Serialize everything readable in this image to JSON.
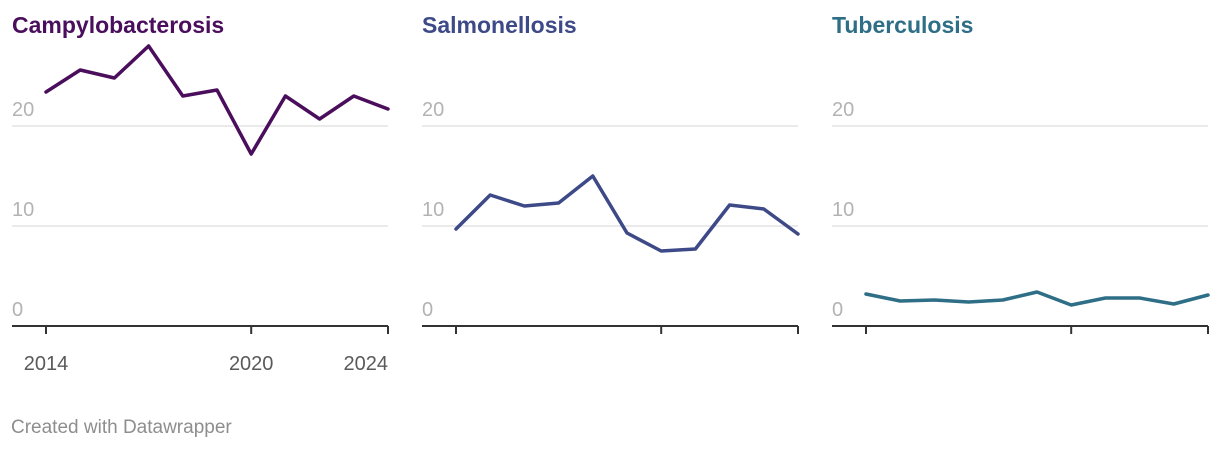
{
  "chart_data": [
    {
      "type": "line",
      "title": "Campylobacterosis",
      "color": "#4a0e5c",
      "x": [
        2014,
        2015,
        2016,
        2017,
        2018,
        2019,
        2020,
        2021,
        2022,
        2023,
        2024
      ],
      "values": [
        23.4,
        25.6,
        24.8,
        28.0,
        23.0,
        23.6,
        17.2,
        23.0,
        20.7,
        23.0,
        21.7
      ],
      "ylim": [
        0,
        20
      ],
      "yticks": [
        0,
        10,
        20
      ],
      "ytick_labels": [
        "0",
        "10",
        "20"
      ],
      "xticks": [
        2014,
        2020,
        2024
      ],
      "xtick_labels": [
        "2014",
        "2020",
        "2024"
      ]
    },
    {
      "type": "line",
      "title": "Salmonellosis",
      "color": "#3e4a88",
      "x": [
        2014,
        2015,
        2016,
        2017,
        2018,
        2019,
        2020,
        2021,
        2022,
        2023,
        2024
      ],
      "values": [
        9.7,
        13.1,
        12.0,
        12.3,
        15.0,
        9.3,
        7.5,
        7.7,
        12.1,
        11.7,
        9.2
      ],
      "ylim": [
        0,
        20
      ],
      "yticks": [
        0,
        10,
        20
      ],
      "ytick_labels": [
        "0",
        "10",
        "20"
      ],
      "xticks": [
        2014,
        2020,
        2024
      ],
      "xtick_labels": []
    },
    {
      "type": "line",
      "title": "Tuberculosis",
      "color": "#2e6e86",
      "x": [
        2014,
        2015,
        2016,
        2017,
        2018,
        2019,
        2020,
        2021,
        2022,
        2023,
        2024
      ],
      "values": [
        3.2,
        2.5,
        2.6,
        2.4,
        2.6,
        3.4,
        2.1,
        2.8,
        2.8,
        2.2,
        3.1
      ],
      "ylim": [
        0,
        20
      ],
      "yticks": [
        0,
        10,
        20
      ],
      "ytick_labels": [
        "0",
        "10",
        "20"
      ],
      "xticks": [
        2014,
        2020,
        2024
      ],
      "xtick_labels": []
    }
  ],
  "footer": {
    "credit": "Created with Datawrapper"
  }
}
